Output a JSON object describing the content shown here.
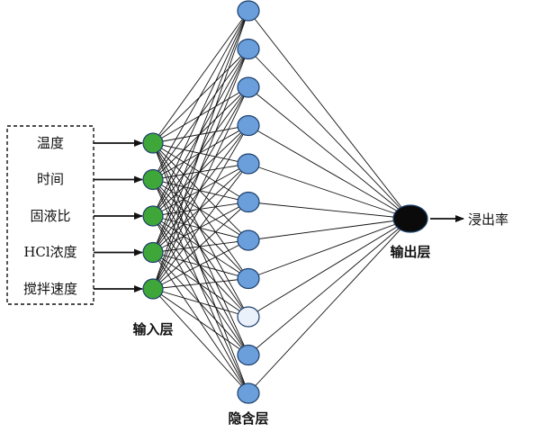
{
  "input_features": [
    "温度",
    "时间",
    "固液比",
    "HCl浓度",
    "搅拌速度"
  ],
  "layer_labels": {
    "input": "输入层",
    "hidden": "隐含层",
    "output": "输出层"
  },
  "output_variable": "浸出率",
  "hidden_neuron_count": 11,
  "colors": {
    "input_node": "#3fa63a",
    "hidden_node": "#6b9fdc",
    "hidden_node_light": "#eaf1fb",
    "output_node": "#0a0a0a",
    "edge": "#111111"
  }
}
